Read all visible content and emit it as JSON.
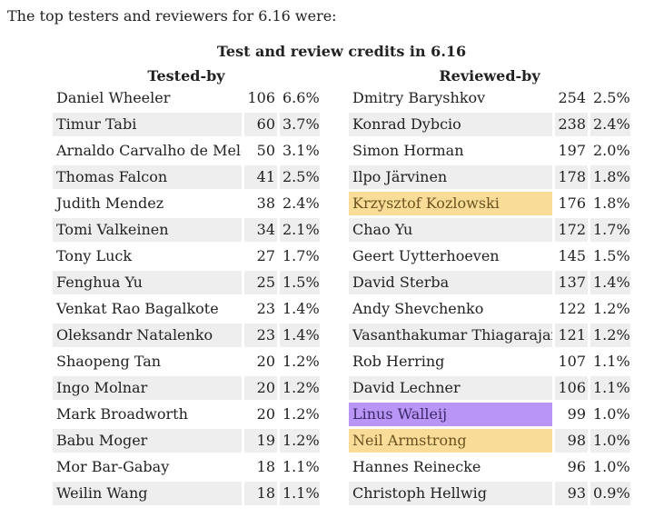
{
  "intro_text": "The top testers and reviewers for 6.16 were:",
  "caption": "Test and review credits in 6.16",
  "tested_by": {
    "heading": "Tested-by",
    "rows": [
      {
        "name": "Daniel Wheeler",
        "count": "106",
        "pct": "6.6%"
      },
      {
        "name": "Timur Tabi",
        "count": "60",
        "pct": "3.7%"
      },
      {
        "name": "Arnaldo Carvalho de Melo",
        "count": "50",
        "pct": "3.1%"
      },
      {
        "name": "Thomas Falcon",
        "count": "41",
        "pct": "2.5%"
      },
      {
        "name": "Judith Mendez",
        "count": "38",
        "pct": "2.4%"
      },
      {
        "name": "Tomi Valkeinen",
        "count": "34",
        "pct": "2.1%"
      },
      {
        "name": "Tony Luck",
        "count": "27",
        "pct": "1.7%"
      },
      {
        "name": "Fenghua Yu",
        "count": "25",
        "pct": "1.5%"
      },
      {
        "name": "Venkat Rao Bagalkote",
        "count": "23",
        "pct": "1.4%"
      },
      {
        "name": "Oleksandr Natalenko",
        "count": "23",
        "pct": "1.4%"
      },
      {
        "name": "Shaopeng Tan",
        "count": "20",
        "pct": "1.2%"
      },
      {
        "name": "Ingo Molnar",
        "count": "20",
        "pct": "1.2%"
      },
      {
        "name": "Mark Broadworth",
        "count": "20",
        "pct": "1.2%"
      },
      {
        "name": "Babu Moger",
        "count": "19",
        "pct": "1.2%"
      },
      {
        "name": "Mor Bar-Gabay",
        "count": "18",
        "pct": "1.1%"
      },
      {
        "name": "Weilin Wang",
        "count": "18",
        "pct": "1.1%"
      }
    ]
  },
  "reviewed_by": {
    "heading": "Reviewed-by",
    "rows": [
      {
        "name": "Dmitry Baryshkov",
        "count": "254",
        "pct": "2.5%"
      },
      {
        "name": "Konrad Dybcio",
        "count": "238",
        "pct": "2.4%"
      },
      {
        "name": "Simon Horman",
        "count": "197",
        "pct": "2.0%"
      },
      {
        "name": "Ilpo Järvinen",
        "count": "178",
        "pct": "1.8%"
      },
      {
        "name": "Krzysztof Kozlowski",
        "count": "176",
        "pct": "1.8%",
        "highlight": "#f8dc98"
      },
      {
        "name": "Chao Yu",
        "count": "172",
        "pct": "1.7%"
      },
      {
        "name": "Geert Uytterhoeven",
        "count": "145",
        "pct": "1.5%"
      },
      {
        "name": "David Sterba",
        "count": "137",
        "pct": "1.4%"
      },
      {
        "name": "Andy Shevchenko",
        "count": "122",
        "pct": "1.2%"
      },
      {
        "name": "Vasanthakumar Thiagarajan",
        "count": "121",
        "pct": "1.2%"
      },
      {
        "name": "Rob Herring",
        "count": "107",
        "pct": "1.1%"
      },
      {
        "name": "David Lechner",
        "count": "106",
        "pct": "1.1%"
      },
      {
        "name": "Linus Walleij",
        "count": "99",
        "pct": "1.0%",
        "highlight": "#b996f5"
      },
      {
        "name": "Neil Armstrong",
        "count": "98",
        "pct": "1.0%",
        "highlight": "#f8dc98"
      },
      {
        "name": "Hannes Reinecke",
        "count": "96",
        "pct": "1.0%"
      },
      {
        "name": "Christoph Hellwig",
        "count": "93",
        "pct": "0.9%"
      }
    ]
  }
}
